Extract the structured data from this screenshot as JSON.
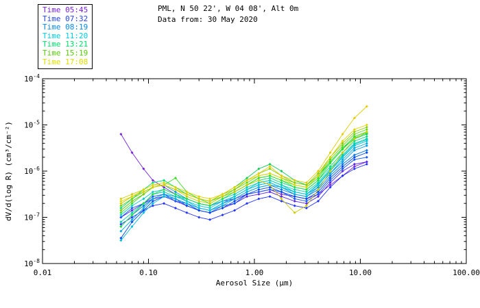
{
  "header": {
    "title": "PML, N 50 22', W 04 08', Alt 0m",
    "subtitle": "Data from: 30 May 2020"
  },
  "legend": {
    "items": [
      {
        "label": "Time 05:45",
        "color": "#7722dd"
      },
      {
        "label": "Time 07:32",
        "color": "#2244ff"
      },
      {
        "label": "Time 08:19",
        "color": "#0088ee"
      },
      {
        "label": "Time 11:20",
        "color": "#00ccdd"
      },
      {
        "label": "Time 13:21",
        "color": "#00dd66"
      },
      {
        "label": "Time 15:19",
        "color": "#55cc00"
      },
      {
        "label": "Time 17:08",
        "color": "#dddd00"
      }
    ]
  },
  "chart_data": {
    "type": "line",
    "title": "PML, N 50 22', W 04 08', Alt 0m",
    "subtitle": "Data from: 30 May 2020",
    "x_label": "Aerosol Size (μm)",
    "y_label": "dV/d(log R) (cm³/cm⁻²)",
    "x_scale": "log",
    "y_scale": "log",
    "x_range": [
      0.01,
      100
    ],
    "y_range": [
      1e-08,
      0.0001
    ],
    "x_ticks": [
      "0.01",
      "0.10",
      "1.00",
      "10.00",
      "100.00"
    ],
    "y_tick_exponents": [
      -8,
      -7,
      -6,
      -5,
      -4
    ],
    "grid": false,
    "legend_position": "top-left",
    "values_are_log10": true,
    "x": [
      0.055,
      0.07,
      0.09,
      0.11,
      0.14,
      0.18,
      0.23,
      0.3,
      0.38,
      0.5,
      0.65,
      0.85,
      1.1,
      1.4,
      1.8,
      2.4,
      3.1,
      4.0,
      5.2,
      6.8,
      8.8,
      11.5
    ],
    "series": [
      {
        "time_group": "Time 05:45",
        "color": "#7722dd",
        "values_log10": [
          -5.2,
          -5.6,
          -5.95,
          -6.2,
          -6.35,
          -6.5,
          -6.6,
          -6.7,
          -6.75,
          -6.65,
          -6.6,
          -6.5,
          -6.45,
          -6.4,
          -6.5,
          -6.55,
          -6.6,
          -6.5,
          -6.3,
          -6.1,
          -5.9,
          -5.8
        ]
      },
      {
        "time_group": "Time 05:45",
        "color": "#5522ee",
        "values_log10": [
          -7.0,
          -6.85,
          -6.7,
          -6.6,
          -6.55,
          -6.65,
          -6.75,
          -6.85,
          -6.9,
          -6.8,
          -6.7,
          -6.55,
          -6.5,
          -6.45,
          -6.55,
          -6.65,
          -6.7,
          -6.55,
          -6.25,
          -6.0,
          -5.85,
          -5.8
        ]
      },
      {
        "time_group": "Time 07:32",
        "color": "#2233ff",
        "values_log10": [
          -7.15,
          -7.0,
          -6.85,
          -6.75,
          -6.7,
          -6.8,
          -6.9,
          -7.0,
          -7.05,
          -6.95,
          -6.85,
          -6.7,
          -6.6,
          -6.55,
          -6.65,
          -6.75,
          -6.8,
          -6.65,
          -6.35,
          -6.1,
          -5.95,
          -5.85
        ]
      },
      {
        "time_group": "Time 07:32",
        "color": "#1155ff",
        "values_log10": [
          -7.0,
          -6.8,
          -6.7,
          -6.55,
          -6.5,
          -6.65,
          -6.7,
          -6.85,
          -6.9,
          -6.75,
          -6.7,
          -6.5,
          -6.45,
          -6.4,
          -6.45,
          -6.6,
          -6.65,
          -6.5,
          -6.2,
          -5.95,
          -5.75,
          -5.7
        ]
      },
      {
        "time_group": "Time 07:32",
        "color": "#0044ee",
        "values_log10": [
          -7.45,
          -7.1,
          -6.85,
          -6.65,
          -6.55,
          -6.6,
          -6.75,
          -6.85,
          -6.9,
          -6.8,
          -6.65,
          -6.5,
          -6.4,
          -6.35,
          -6.45,
          -6.55,
          -6.6,
          -6.45,
          -6.15,
          -5.9,
          -5.7,
          -5.6
        ]
      },
      {
        "time_group": "Time 08:19",
        "color": "#0077ee",
        "values_log10": [
          -7.2,
          -6.95,
          -6.75,
          -6.6,
          -6.5,
          -6.6,
          -6.7,
          -6.8,
          -6.85,
          -6.7,
          -6.6,
          -6.45,
          -6.35,
          -6.3,
          -6.4,
          -6.5,
          -6.55,
          -6.4,
          -6.1,
          -5.85,
          -5.65,
          -5.55
        ]
      },
      {
        "time_group": "Time 08:19",
        "color": "#0099ee",
        "values_log10": [
          -6.85,
          -6.65,
          -6.5,
          -6.35,
          -6.3,
          -6.45,
          -6.6,
          -6.7,
          -6.75,
          -6.65,
          -6.55,
          -6.4,
          -6.3,
          -6.25,
          -6.35,
          -6.45,
          -6.5,
          -6.35,
          -6.05,
          -5.8,
          -5.55,
          -5.45
        ]
      },
      {
        "time_group": "Time 08:19",
        "color": "#00aadd",
        "values_log10": [
          -7.3,
          -7.05,
          -6.8,
          -6.6,
          -6.5,
          -6.55,
          -6.65,
          -6.8,
          -6.85,
          -6.75,
          -6.6,
          -6.45,
          -6.35,
          -6.3,
          -6.35,
          -6.5,
          -6.55,
          -6.35,
          -6.05,
          -5.75,
          -5.5,
          -5.4
        ]
      },
      {
        "time_group": "Time 11:20",
        "color": "#00bbdd",
        "values_log10": [
          -7.5,
          -7.2,
          -6.9,
          -6.7,
          -6.55,
          -6.6,
          -6.7,
          -6.8,
          -6.85,
          -6.7,
          -6.55,
          -6.4,
          -6.3,
          -6.25,
          -6.35,
          -6.45,
          -6.5,
          -6.3,
          -6.0,
          -5.7,
          -5.45,
          -5.35
        ]
      },
      {
        "time_group": "Time 11:20",
        "color": "#00cccc",
        "values_log10": [
          -6.95,
          -6.75,
          -6.6,
          -6.45,
          -6.4,
          -6.5,
          -6.65,
          -6.75,
          -6.8,
          -6.65,
          -6.55,
          -6.4,
          -6.25,
          -6.2,
          -6.3,
          -6.45,
          -6.5,
          -6.28,
          -5.98,
          -5.68,
          -5.42,
          -5.32
        ]
      },
      {
        "time_group": "Time 11:20",
        "color": "#00ccaa",
        "values_log10": [
          -7.1,
          -6.9,
          -6.7,
          -6.5,
          -6.45,
          -6.55,
          -6.6,
          -6.7,
          -6.75,
          -6.6,
          -6.5,
          -6.35,
          -6.25,
          -6.2,
          -6.3,
          -6.4,
          -6.45,
          -6.25,
          -5.95,
          -5.65,
          -5.4,
          -5.3
        ]
      },
      {
        "time_group": "Time 13:21",
        "color": "#00dd77",
        "values_log10": [
          -6.8,
          -6.6,
          -6.4,
          -6.25,
          -6.2,
          -6.35,
          -6.5,
          -6.6,
          -6.65,
          -6.55,
          -6.45,
          -6.3,
          -6.2,
          -6.15,
          -6.25,
          -6.35,
          -6.4,
          -6.2,
          -5.9,
          -5.6,
          -5.35,
          -5.25
        ]
      },
      {
        "time_group": "Time 13:21",
        "color": "#11cc55",
        "values_log10": [
          -6.7,
          -6.55,
          -6.45,
          -6.35,
          -6.3,
          -6.4,
          -6.5,
          -6.6,
          -6.65,
          -6.5,
          -6.35,
          -6.15,
          -5.95,
          -5.85,
          -6.0,
          -6.2,
          -6.3,
          -6.1,
          -5.8,
          -5.5,
          -5.3,
          -5.2
        ]
      },
      {
        "time_group": "Time 13:21",
        "color": "#22dd44",
        "values_log10": [
          -7.2,
          -6.95,
          -6.7,
          -6.5,
          -6.4,
          -6.5,
          -6.6,
          -6.7,
          -6.75,
          -6.6,
          -6.45,
          -6.3,
          -6.15,
          -6.1,
          -6.2,
          -6.35,
          -6.4,
          -6.2,
          -5.83,
          -5.53,
          -5.28,
          -5.18
        ]
      },
      {
        "time_group": "Time 13:21",
        "color": "#33dd22",
        "values_log10": [
          -6.9,
          -6.7,
          -6.5,
          -6.35,
          -6.3,
          -6.15,
          -6.45,
          -6.6,
          -6.7,
          -6.55,
          -6.45,
          -6.3,
          -6.15,
          -6.1,
          -6.2,
          -6.3,
          -6.35,
          -6.15,
          -5.8,
          -5.5,
          -5.25,
          -5.15
        ]
      },
      {
        "time_group": "Time 15:19",
        "color": "#66d511",
        "values_log10": [
          -6.75,
          -6.6,
          -6.45,
          -6.35,
          -6.3,
          -6.4,
          -6.5,
          -6.6,
          -6.65,
          -6.55,
          -6.4,
          -6.25,
          -6.1,
          -6.05,
          -6.15,
          -6.25,
          -6.3,
          -6.1,
          -5.75,
          -5.45,
          -5.2,
          -5.1
        ]
      },
      {
        "time_group": "Time 15:19",
        "color": "#88cc08",
        "values_log10": [
          -6.85,
          -6.65,
          -6.5,
          -6.35,
          -6.3,
          -6.4,
          -6.5,
          -6.6,
          -6.65,
          -6.5,
          -6.4,
          -6.2,
          -6.05,
          -5.95,
          -6.1,
          -6.25,
          -6.3,
          -6.05,
          -5.7,
          -5.4,
          -5.15,
          -5.05
        ]
      },
      {
        "time_group": "Time 17:08",
        "color": "#cccc00",
        "values_log10": [
          -6.6,
          -6.5,
          -6.4,
          -6.3,
          -6.3,
          -6.4,
          -6.55,
          -6.65,
          -6.7,
          -6.55,
          -6.45,
          -6.3,
          -6.2,
          -6.3,
          -6.6,
          -6.9,
          -6.75,
          -6.4,
          -6.0,
          -5.6,
          -5.3,
          -5.15
        ]
      },
      {
        "time_group": "Time 17:08",
        "color": "#e0cc00",
        "values_log10": [
          -6.7,
          -6.55,
          -6.45,
          -6.35,
          -6.3,
          -6.4,
          -6.5,
          -6.6,
          -6.65,
          -6.5,
          -6.35,
          -6.2,
          -6.05,
          -5.9,
          -6.1,
          -6.2,
          -6.25,
          -6.0,
          -5.6,
          -5.2,
          -4.85,
          -4.6
        ]
      },
      {
        "time_group": "Time 17:08",
        "color": "#ddd500",
        "values_log10": [
          -6.65,
          -6.55,
          -6.4,
          -6.3,
          -6.25,
          -6.35,
          -6.45,
          -6.55,
          -6.6,
          -6.5,
          -6.35,
          -6.2,
          -6.1,
          -6.05,
          -6.15,
          -6.3,
          -6.35,
          -6.1,
          -5.7,
          -5.35,
          -5.1,
          -5.0
        ]
      }
    ]
  }
}
